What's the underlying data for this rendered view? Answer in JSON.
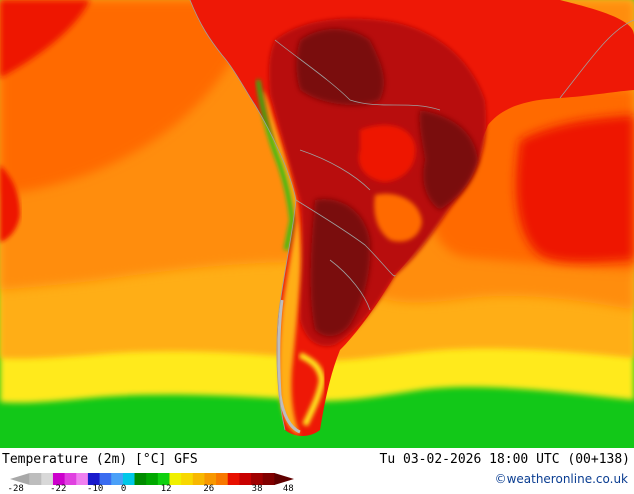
{
  "map": {
    "title": "Temperature (2m) [°C] GFS",
    "valid_time": "Tu 03-02-2026 18:00 UTC (00+138)",
    "credit": "©weatheronline.co.uk",
    "region": "South America"
  },
  "legend": {
    "colors": [
      "#a8a8a8",
      "#bdbdbd",
      "#d8d8d8",
      "#cc00cc",
      "#e040e0",
      "#f080f0",
      "#1a1acc",
      "#3a6cf0",
      "#4aa0f8",
      "#00c8e8",
      "#008c00",
      "#00a800",
      "#10d010",
      "#f0f000",
      "#f8d800",
      "#f8b800",
      "#f89800",
      "#f87800",
      "#e81000",
      "#c80000",
      "#a00000",
      "#800000",
      "#600000"
    ],
    "ticks": [
      "-28",
      "-22",
      "-10",
      "0",
      "12",
      "26",
      "38",
      "48"
    ],
    "ocean_colors": {
      "green": "#12c818",
      "yellow": "#ffea1c",
      "orange_light": "#ffae15",
      "orange": "#ff8d0c",
      "red_orange": "#ff6a06",
      "red": "#ee1806",
      "dark_red": "#b80808",
      "darkest": "#7a0808"
    }
  }
}
